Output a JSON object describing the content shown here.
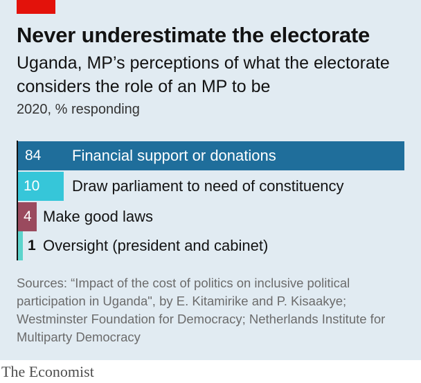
{
  "header": {
    "title": "Never underestimate the electorate",
    "subtitle": "Uganda, MP’s perceptions of what the electorate considers the role of an MP to be",
    "unit": "2020, % responding"
  },
  "chart_data": {
    "type": "bar",
    "orientation": "horizontal",
    "title": "Never underestimate the electorate",
    "subtitle": "Uganda, MP’s perceptions of what the electorate considers the role of an MP to be",
    "unit": "2020, % responding",
    "categories": [
      "Financial support or donations",
      "Draw parliament to need of constituency",
      "Make good laws",
      "Oversight (president and cabinet)"
    ],
    "values": [
      84,
      10,
      4,
      1
    ],
    "value_labels": [
      "84",
      "10",
      "4",
      "1"
    ],
    "colors": [
      "#1f6e9b",
      "#36c6d9",
      "#9a4a5e",
      "#5cd4cc"
    ],
    "xlim": [
      0,
      84
    ],
    "grid": false,
    "legend": "none"
  },
  "sources": "Sources: “Impact of the cost of politics on inclusive political participation in Uganda\", by E. Kitamirike and P. Kisaakye; Westminster Foundation for Democracy; Netherlands Institute for Multiparty Democracy",
  "footer": {
    "logo": "The Economist"
  }
}
